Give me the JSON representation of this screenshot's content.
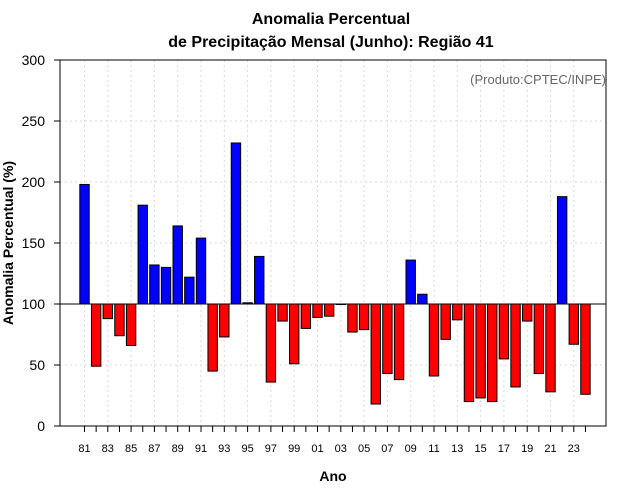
{
  "chart_data": {
    "type": "bar",
    "title": "Anomalia Percentual",
    "subtitle": "de Precipitação Mensal (Junho): Região 41",
    "xlabel": "Ano",
    "ylabel": "Anomalia Percentual (%)",
    "credit": "(Produto:CPTEC/INPE)",
    "ylim": [
      0,
      300
    ],
    "yticks": [
      0,
      50,
      100,
      150,
      200,
      250,
      300
    ],
    "baseline": 100,
    "grid": true,
    "colors": {
      "above": "#0000ff",
      "below": "#ff0000",
      "edge": "#000000",
      "baseline": "#000000"
    },
    "categories": [
      "81",
      "82",
      "83",
      "84",
      "85",
      "86",
      "87",
      "88",
      "89",
      "90",
      "91",
      "92",
      "93",
      "94",
      "95",
      "96",
      "97",
      "98",
      "99",
      "00",
      "01",
      "02",
      "03",
      "04",
      "05",
      "06",
      "07",
      "08",
      "09",
      "10",
      "11",
      "12",
      "13",
      "14",
      "15",
      "16",
      "17",
      "18",
      "19",
      "20",
      "21",
      "22",
      "23",
      "24"
    ],
    "xtick_labels": [
      "81",
      "83",
      "85",
      "87",
      "89",
      "91",
      "93",
      "95",
      "97",
      "99",
      "01",
      "03",
      "05",
      "07",
      "09",
      "11",
      "13",
      "15",
      "17",
      "19",
      "21",
      "23"
    ],
    "values": [
      198,
      49,
      88,
      74,
      66,
      181,
      132,
      130,
      164,
      122,
      154,
      45,
      73,
      232,
      101,
      139,
      36,
      86,
      51,
      80,
      89,
      90,
      100,
      77,
      79,
      18,
      43,
      38,
      136,
      108,
      41,
      71,
      87,
      20,
      23,
      20,
      55,
      32,
      86,
      43,
      28,
      188,
      67,
      26
    ]
  }
}
